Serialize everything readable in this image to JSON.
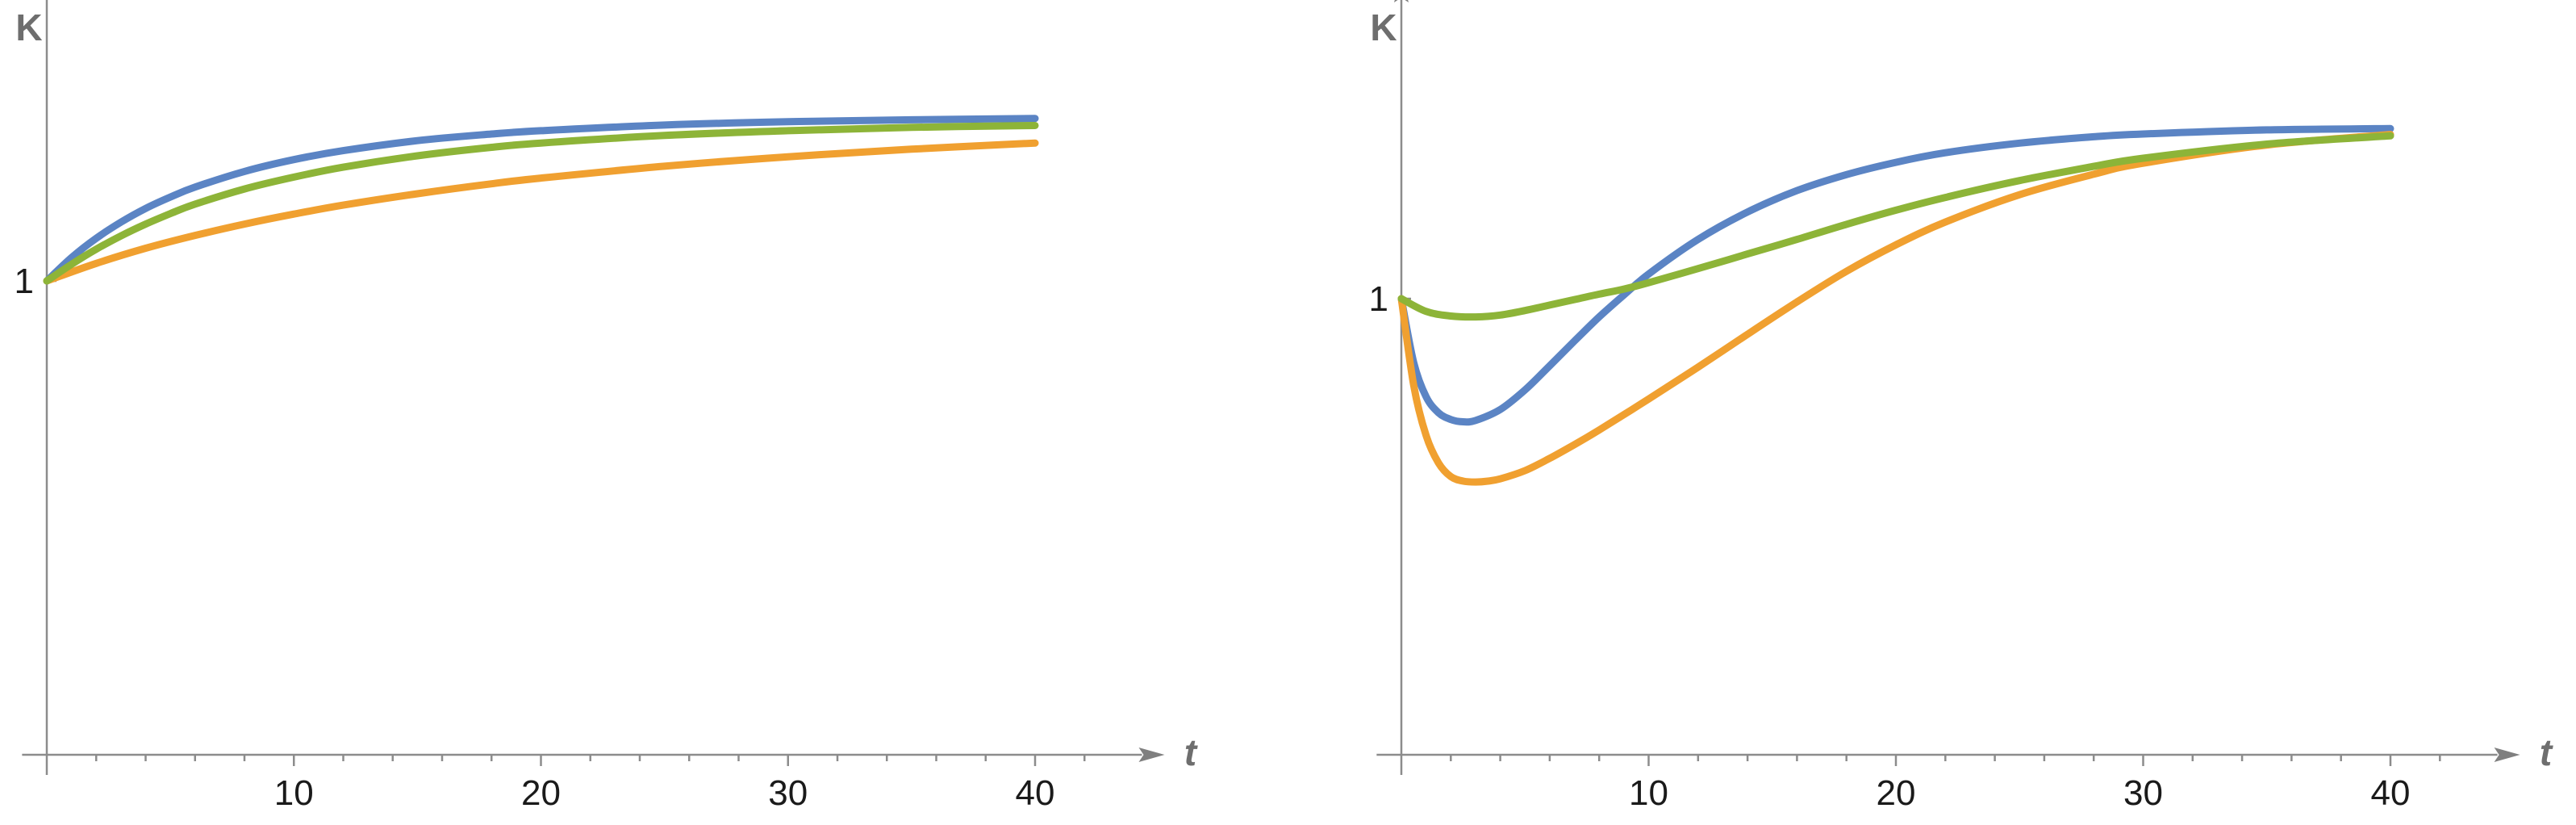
{
  "chart_data": [
    {
      "type": "line",
      "title": "",
      "xlabel": "t",
      "ylabel": "K",
      "xlim": [
        -1,
        44
      ],
      "ylim": [
        0.0,
        1.62
      ],
      "x_ticks": [
        10,
        20,
        30,
        40
      ],
      "y_ticks": [
        1
      ],
      "grid": false,
      "legend": "none",
      "series": [
        {
          "color": "#5b84c4",
          "x": [
            0,
            1,
            2,
            3,
            4,
            5,
            6,
            8,
            10,
            12,
            15,
            18,
            20,
            25,
            30,
            35,
            40
          ],
          "y": [
            1.0,
            1.049,
            1.09,
            1.124,
            1.153,
            1.177,
            1.198,
            1.231,
            1.256,
            1.275,
            1.296,
            1.31,
            1.317,
            1.329,
            1.336,
            1.34,
            1.343
          ]
        },
        {
          "color": "#f0a030",
          "x": [
            0,
            2,
            4,
            6,
            8,
            10,
            12,
            15,
            18,
            20,
            25,
            30,
            35,
            40
          ],
          "y": [
            1.0,
            1.037,
            1.069,
            1.096,
            1.12,
            1.141,
            1.16,
            1.184,
            1.205,
            1.217,
            1.242,
            1.262,
            1.278,
            1.291
          ]
        },
        {
          "color": "#8db438",
          "x": [
            0,
            1,
            2,
            3,
            4,
            5,
            6,
            8,
            10,
            12,
            15,
            18,
            20,
            25,
            30,
            35,
            40
          ],
          "y": [
            1.0,
            1.035,
            1.067,
            1.095,
            1.12,
            1.142,
            1.162,
            1.194,
            1.219,
            1.24,
            1.264,
            1.282,
            1.291,
            1.307,
            1.317,
            1.324,
            1.328
          ]
        }
      ]
    },
    {
      "type": "line",
      "title": "",
      "xlabel": "t",
      "ylabel": "K",
      "xlim": [
        -1,
        44
      ],
      "ylim": [
        0.0,
        1.6
      ],
      "x_ticks": [
        10,
        20,
        30,
        40
      ],
      "y_ticks": [
        1
      ],
      "grid": false,
      "legend": "none",
      "series": [
        {
          "color": "#5b84c4",
          "x": [
            0,
            0.5,
            1,
            1.5,
            2,
            2.5,
            3,
            4,
            5,
            6,
            7,
            8,
            9,
            10,
            12,
            14,
            16,
            18,
            20,
            22,
            25,
            28,
            30,
            35,
            40
          ],
          "y": [
            1.0,
            0.86,
            0.785,
            0.75,
            0.735,
            0.73,
            0.733,
            0.757,
            0.8,
            0.853,
            0.907,
            0.96,
            1.008,
            1.054,
            1.13,
            1.19,
            1.237,
            1.272,
            1.299,
            1.32,
            1.341,
            1.355,
            1.361,
            1.37,
            1.373
          ]
        },
        {
          "color": "#f0a030",
          "x": [
            0,
            0.5,
            1,
            1.5,
            2,
            2.5,
            3,
            3.5,
            4,
            5,
            6,
            7,
            8,
            10,
            12,
            14,
            16,
            18,
            20,
            22,
            25,
            28,
            30,
            35,
            40
          ],
          "y": [
            1.0,
            0.81,
            0.7,
            0.64,
            0.61,
            0.6,
            0.598,
            0.6,
            0.605,
            0.623,
            0.65,
            0.68,
            0.712,
            0.78,
            0.85,
            0.922,
            0.993,
            1.06,
            1.118,
            1.168,
            1.228,
            1.273,
            1.297,
            1.337,
            1.36
          ]
        },
        {
          "color": "#8db438",
          "x": [
            0,
            1,
            2,
            3,
            4,
            5,
            6,
            7,
            8,
            9,
            10,
            12,
            14,
            16,
            18,
            20,
            22,
            25,
            28,
            30,
            35,
            40
          ],
          "y": [
            1.0,
            0.972,
            0.962,
            0.96,
            0.964,
            0.974,
            0.986,
            0.998,
            1.01,
            1.021,
            1.035,
            1.066,
            1.098,
            1.13,
            1.163,
            1.194,
            1.222,
            1.259,
            1.29,
            1.308,
            1.339,
            1.357
          ]
        }
      ]
    }
  ]
}
